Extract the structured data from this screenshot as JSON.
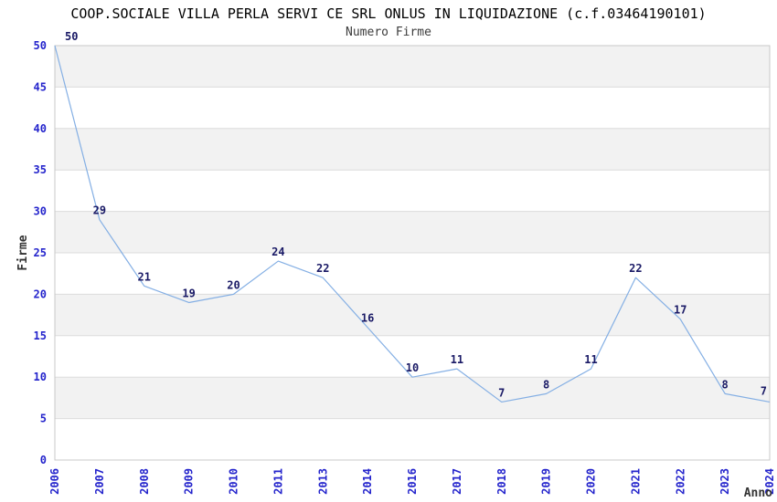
{
  "chart_data": {
    "type": "line",
    "title": "COOP.SOCIALE VILLA PERLA SERVI CE SRL ONLUS IN LIQUIDAZIONE (c.f.03464190101)",
    "subtitle": "Numero Firme",
    "xlabel": "Anno",
    "ylabel": "Firme",
    "categories": [
      "2006",
      "2007",
      "2008",
      "2009",
      "2010",
      "2011",
      "2013",
      "2014",
      "2016",
      "2017",
      "2018",
      "2019",
      "2020",
      "2021",
      "2022",
      "2023",
      "2024"
    ],
    "values": [
      50,
      29,
      21,
      19,
      20,
      24,
      22,
      16,
      10,
      11,
      7,
      8,
      11,
      22,
      17,
      8,
      7
    ],
    "point_labels": [
      "50",
      "29",
      "21",
      "19",
      "20",
      "24",
      "22",
      "16",
      "10",
      "11",
      "7",
      "8",
      "11",
      "22",
      "17",
      "8",
      "7"
    ],
    "ylim": [
      0,
      50
    ],
    "ytick_step": 5,
    "yticks": [
      0,
      5,
      10,
      15,
      20,
      25,
      30,
      35,
      40,
      45,
      50
    ],
    "grid": true,
    "legend": "none",
    "banded_background": true
  },
  "colors": {
    "title": "#000000",
    "subtitle": "#3c3c3c",
    "axis_title": "#333333",
    "tick_label": "#2424cc",
    "data_label": "#1a1a66",
    "line": "#84afe4",
    "band": "#f2f2f2",
    "band_alt": "#ffffff",
    "grid": "#dcdcdc",
    "border": "#c8c8c8",
    "background": "#ffffff"
  }
}
